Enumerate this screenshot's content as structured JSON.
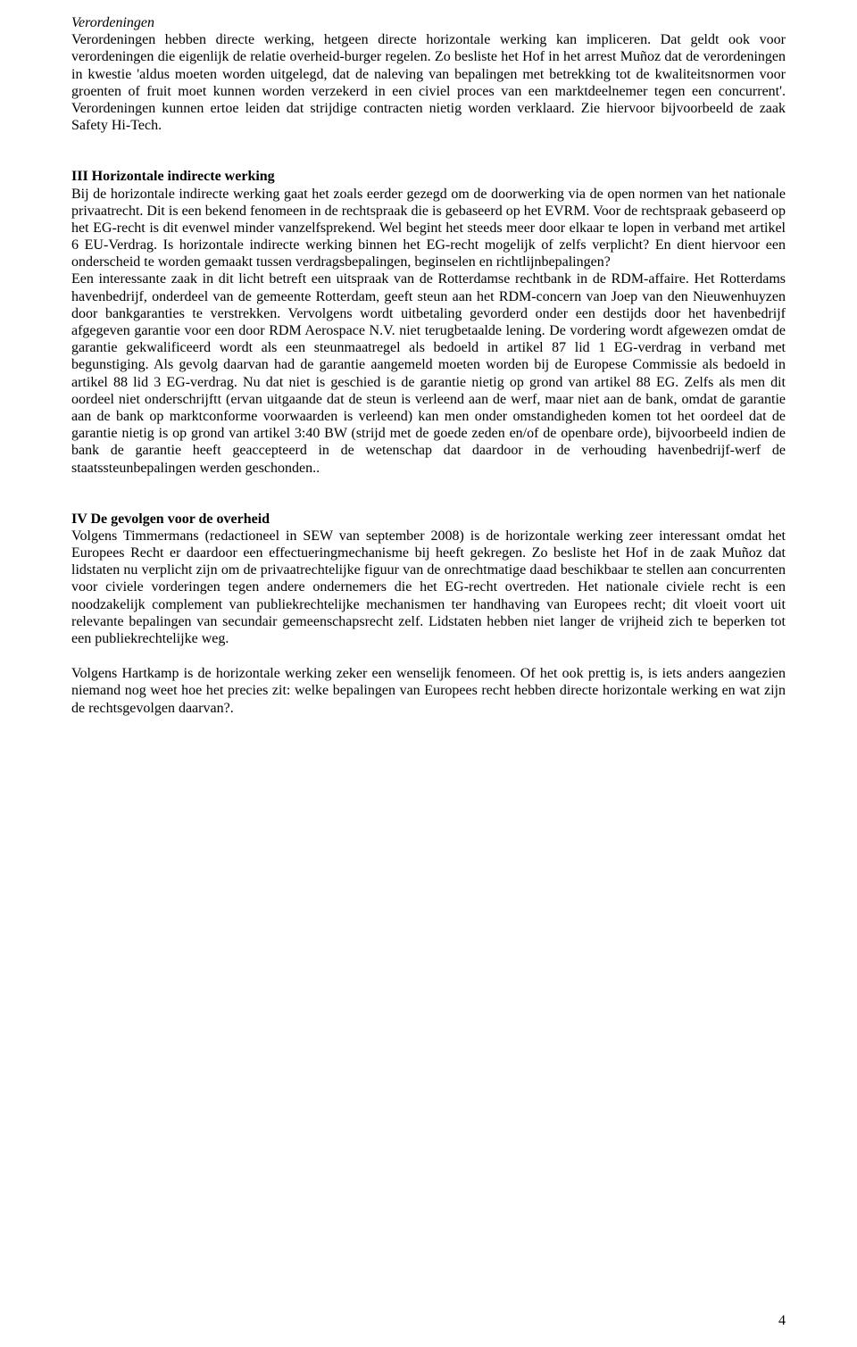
{
  "doc": {
    "page_number": "4",
    "verordeningen": {
      "heading": "Verordeningen",
      "body": "Verordeningen hebben directe werking, hetgeen directe horizontale werking kan impliceren. Dat geldt ook voor verordeningen die eigenlijk de relatie overheid-burger regelen. Zo besliste het Hof in het arrest Muñoz dat de verordeningen in kwestie 'aldus moeten worden uitgelegd, dat de naleving van bepalingen met betrekking tot de kwaliteitsnormen voor groenten of fruit moet kunnen worden verzekerd in een civiel proces van een marktdeelnemer tegen een concurrent'. Verordeningen kunnen ertoe leiden dat strijdige contracten nietig worden verklaard. Zie hiervoor bijvoorbeeld de zaak Safety Hi-Tech."
    },
    "section3": {
      "heading": "III Horizontale indirecte werking",
      "body1": "Bij de horizontale indirecte werking gaat het zoals eerder gezegd om de doorwerking via de open normen van het nationale privaatrecht. Dit is een bekend fenomeen in de rechtspraak die is gebaseerd op het EVRM. Voor de rechtspraak gebaseerd op het EG-recht is dit evenwel minder vanzelfsprekend. Wel begint het steeds meer door elkaar te lopen in verband met artikel 6 EU-Verdrag. Is horizontale indirecte werking binnen het EG-recht mogelijk of zelfs verplicht? En dient hiervoor een onderscheid te worden gemaakt tussen verdragsbepalingen, beginselen en richtlijnbepalingen?",
      "body2": "Een interessante zaak in dit licht betreft een uitspraak van de Rotterdamse rechtbank in de RDM-affaire. Het Rotterdams havenbedrijf, onderdeel van de gemeente Rotterdam, geeft steun aan het RDM-concern van Joep van den Nieuwenhuyzen door bankgaranties te verstrekken. Vervolgens wordt uitbetaling gevorderd onder een destijds door het havenbedrijf afgegeven garantie voor een door RDM Aerospace N.V. niet terugbetaalde lening. De vordering wordt afgewezen omdat de garantie gekwalificeerd wordt als een steunmaatregel als bedoeld in artikel 87 lid 1 EG-verdrag in verband met begunstiging. Als gevolg daarvan had de garantie aangemeld moeten worden bij de Europese Commissie als bedoeld in artikel 88 lid 3 EG-verdrag. Nu dat niet is geschied is de garantie nietig op grond van artikel 88 EG. Zelfs als men dit oordeel niet onderschrijftt (ervan uitgaande dat de steun is verleend aan de werf, maar niet aan de bank, omdat de garantie aan de bank op marktconforme voorwaarden is verleend) kan men onder omstandigheden komen tot het oordeel dat de garantie nietig is op grond van artikel 3:40 BW (strijd met de goede zeden en/of de openbare orde), bijvoorbeeld indien de bank de garantie heeft geaccepteerd in de wetenschap dat daardoor in de verhouding havenbedrijf-werf de staatssteunbepalingen werden geschonden.."
    },
    "section4": {
      "heading": "IV De gevolgen voor de overheid",
      "body1": "Volgens Timmermans (redactioneel in SEW van september 2008) is de horizontale werking zeer interessant omdat het Europees Recht er daardoor een effectueringmechanisme bij heeft gekregen. Zo besliste het Hof in de zaak Muñoz dat lidstaten nu verplicht zijn om de privaatrechtelijke figuur van de onrechtmatige daad beschikbaar te stellen aan concurrenten voor civiele vorderingen tegen andere ondernemers die het EG-recht overtreden. Het nationale civiele recht is een noodzakelijk complement van publiekrechtelijke mechanismen ter handhaving van Europees recht; dit vloeit voort uit relevante bepalingen van secundair gemeenschapsrecht zelf. Lidstaten hebben niet langer de vrijheid zich te beperken tot een publiekrechtelijke weg.",
      "body2": "Volgens Hartkamp is de horizontale werking zeker een wenselijk fenomeen. Of het ook prettig is, is iets anders aangezien niemand nog weet hoe het precies zit: welke bepalingen van Europees recht hebben directe horizontale werking en wat zijn de rechtsgevolgen daarvan?."
    }
  }
}
